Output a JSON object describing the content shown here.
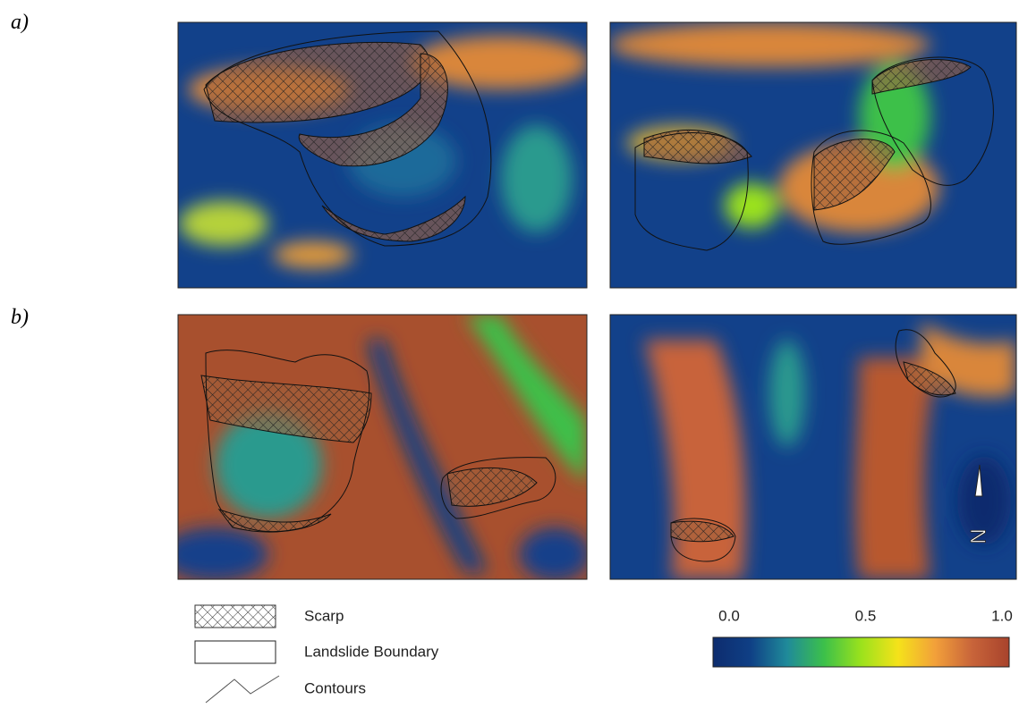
{
  "panels": {
    "row_labels": [
      "a)",
      "b)"
    ]
  },
  "north_label": "N",
  "legend": {
    "items": [
      "Scarp",
      "Landslide Boundary",
      "Contours"
    ]
  },
  "colorbar": {
    "ticks": [
      {
        "value": 0,
        "label": "0.0"
      },
      {
        "value": 0.5,
        "label": "0.5"
      },
      {
        "value": 1,
        "label": "1.0"
      }
    ],
    "colors": [
      "#0d2c6e",
      "#0f3f85",
      "#1f8a9a",
      "#3cc04a",
      "#9be21c",
      "#f5e21a",
      "#f2a03a",
      "#c8643a",
      "#a8432c"
    ]
  }
}
